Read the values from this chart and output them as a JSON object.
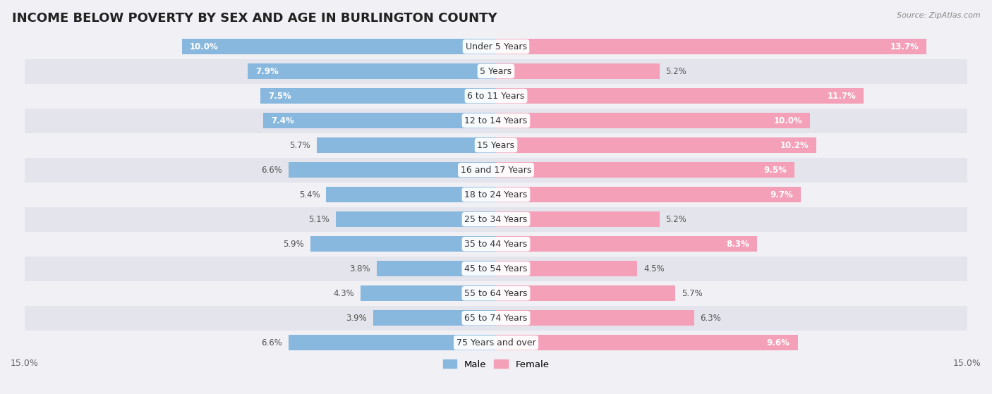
{
  "title": "INCOME BELOW POVERTY BY SEX AND AGE IN BURLINGTON COUNTY",
  "source": "Source: ZipAtlas.com",
  "categories": [
    "Under 5 Years",
    "5 Years",
    "6 to 11 Years",
    "12 to 14 Years",
    "15 Years",
    "16 and 17 Years",
    "18 to 24 Years",
    "25 to 34 Years",
    "35 to 44 Years",
    "45 to 54 Years",
    "55 to 64 Years",
    "65 to 74 Years",
    "75 Years and over"
  ],
  "male_values": [
    10.0,
    7.9,
    7.5,
    7.4,
    5.7,
    6.6,
    5.4,
    5.1,
    5.9,
    3.8,
    4.3,
    3.9,
    6.6
  ],
  "female_values": [
    13.7,
    5.2,
    11.7,
    10.0,
    10.2,
    9.5,
    9.7,
    5.2,
    8.3,
    4.5,
    5.7,
    6.3,
    9.6
  ],
  "male_color": "#88b8de",
  "female_color": "#f4a0b8",
  "male_label": "Male",
  "female_label": "Female",
  "xlim": 15.0,
  "row_bg_odd": "#f0f0f5",
  "row_bg_even": "#e4e4ec",
  "bar_height": 0.62,
  "title_fontsize": 13,
  "label_fontsize": 9,
  "value_fontsize": 8.5,
  "axis_label_fontsize": 9,
  "inside_label_threshold": 7.0
}
